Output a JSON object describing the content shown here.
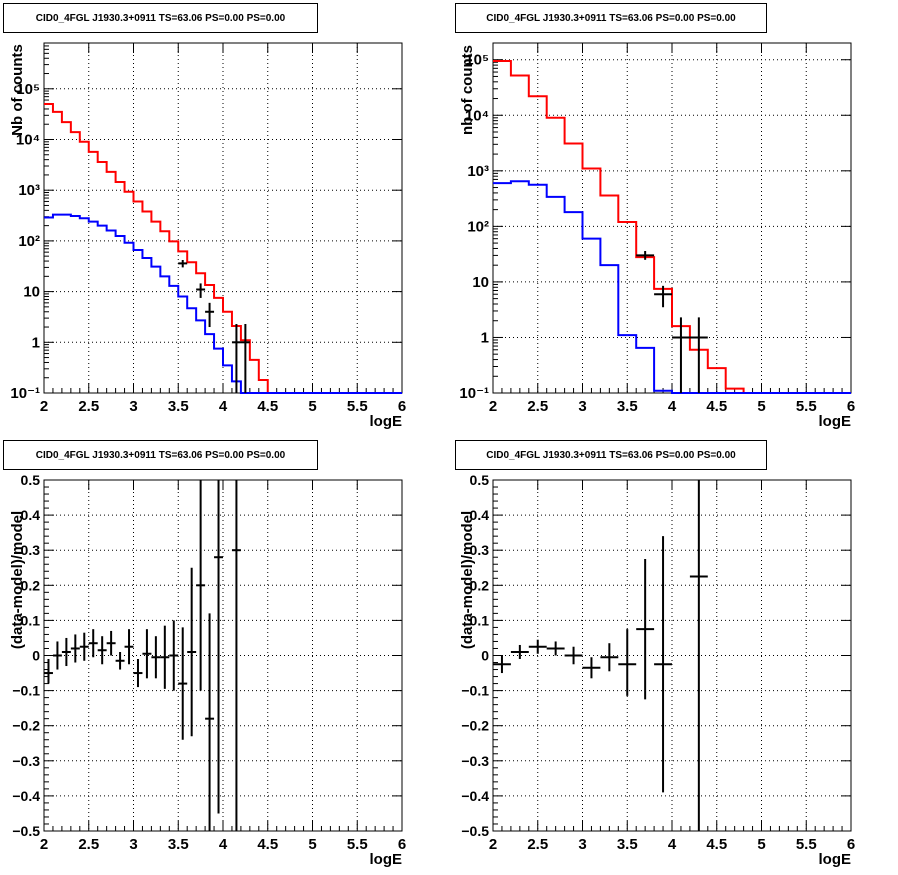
{
  "panels": [
    {
      "title": "CID0_4FGL J1930.3+0911 TS=63.06 PS=0.00 PS=0.00"
    },
    {
      "title": "CID0_4FGL J1930.3+0911 TS=63.06 PS=0.00 PS=0.00"
    },
    {
      "title": "CID0_4FGL J1930.3+0911 TS=63.06 PS=0.00 PS=0.00"
    },
    {
      "title": "CID0_4FGL J1930.3+0911 TS=63.06 PS=0.00 PS=0.00"
    }
  ],
  "colors": {
    "data": "#000000",
    "model": "#ff0000",
    "component": "#0000ff",
    "grid": "#000000"
  },
  "chart_data": [
    {
      "type": "line",
      "title": "CID0_4FGL J1930.3+0911 TS=63.06 PS=0.00 PS=0.00",
      "xlabel": "logE",
      "ylabel": "Nb of counts",
      "xlim": [
        2,
        6
      ],
      "ylim": [
        0.1,
        800000
      ],
      "yscale": "log",
      "grid": true,
      "xticks": [
        "2",
        "2.5",
        "3",
        "3.5",
        "4",
        "4.5",
        "5",
        "5.5",
        "6"
      ],
      "yticks": [
        {
          "v": 0.1,
          "l": "10⁻¹"
        },
        {
          "v": 1,
          "l": "1"
        },
        {
          "v": 10,
          "l": "10"
        },
        {
          "v": 100,
          "l": "10²"
        },
        {
          "v": 1000,
          "l": "10³"
        },
        {
          "v": 10000,
          "l": "10⁴"
        },
        {
          "v": 100000,
          "l": "10⁵"
        }
      ],
      "bin_edges": [
        2,
        2.1,
        2.2,
        2.3,
        2.4,
        2.5,
        2.6,
        2.7,
        2.8,
        2.9,
        3,
        3.1,
        3.2,
        3.3,
        3.4,
        3.5,
        3.6,
        3.7,
        3.8,
        3.9,
        4,
        4.1,
        4.2,
        4.3,
        4.4,
        4.5,
        4.6,
        4.7,
        4.8,
        4.9,
        5,
        5.1,
        5.2,
        5.3,
        5.4,
        5.5,
        5.6,
        5.7,
        5.8,
        5.9,
        6
      ],
      "series": [
        {
          "values": [
            50000,
            35000,
            22000,
            14000,
            9000,
            5700,
            3600,
            2300,
            1450,
            930,
            600,
            380,
            240,
            155,
            98,
            62,
            38,
            23,
            13.5,
            7.5,
            4,
            2.1,
            1.1,
            0.45,
            0.18,
            0.09,
            0,
            0,
            0,
            0,
            0,
            0,
            0,
            0,
            0,
            0,
            0,
            0,
            0,
            0
          ]
        },
        {
          "values": [
            290,
            330,
            330,
            310,
            280,
            240,
            200,
            160,
            125,
            92,
            66,
            46,
            31,
            20,
            13,
            8,
            4.7,
            2.7,
            1.45,
            0.75,
            0.35,
            0.17,
            0.08,
            0,
            0,
            0,
            0,
            0,
            0,
            0,
            0,
            0,
            0,
            0,
            0,
            0,
            0,
            0,
            0,
            0
          ]
        }
      ],
      "points": [
        {
          "x": 3.55,
          "y": 36,
          "lo": 30,
          "hi": 42
        },
        {
          "x": 3.75,
          "y": 11,
          "lo": 7.5,
          "hi": 14.5
        },
        {
          "x": 3.85,
          "y": 4,
          "lo": 2,
          "hi": 6
        },
        {
          "x": 4.15,
          "y": 1,
          "lo": 0.02,
          "hi": 2.3
        },
        {
          "x": 4.25,
          "y": 1,
          "lo": 0.02,
          "hi": 2.3
        }
      ]
    },
    {
      "type": "line",
      "title": "CID0_4FGL J1930.3+0911 TS=63.06 PS=0.00 PS=0.00",
      "xlabel": "logE",
      "ylabel": "nb of counts",
      "xlim": [
        2,
        6
      ],
      "ylim": [
        0.1,
        200000
      ],
      "yscale": "log",
      "grid": true,
      "xticks": [
        "2",
        "2.5",
        "3",
        "3.5",
        "4",
        "4.5",
        "5",
        "5.5",
        "6"
      ],
      "yticks": [
        {
          "v": 0.1,
          "l": "10⁻¹"
        },
        {
          "v": 1,
          "l": "1"
        },
        {
          "v": 10,
          "l": "10"
        },
        {
          "v": 100,
          "l": "10²"
        },
        {
          "v": 1000,
          "l": "10³"
        },
        {
          "v": 10000,
          "l": "10⁴"
        },
        {
          "v": 100000,
          "l": "10⁵"
        }
      ],
      "bin_edges": [
        2,
        2.2,
        2.4,
        2.6,
        2.8,
        3,
        3.2,
        3.4,
        3.6,
        3.8,
        4,
        4.2,
        4.4,
        4.6,
        4.8,
        5,
        5.2,
        5.4,
        5.6,
        5.8,
        6
      ],
      "series": [
        {
          "values": [
            95000,
            52000,
            22000,
            9000,
            3100,
            1100,
            360,
            120,
            28,
            7.5,
            1.6,
            0.6,
            0.28,
            0.12,
            0,
            0,
            0,
            0,
            0,
            0
          ]
        },
        {
          "values": [
            600,
            650,
            560,
            340,
            180,
            60,
            20,
            1.1,
            0.65,
            0.11,
            0,
            0,
            0,
            0,
            0,
            0,
            0,
            0,
            0,
            0
          ]
        }
      ],
      "points": [
        {
          "x": 3.7,
          "y": 30,
          "lo": 25,
          "hi": 36
        },
        {
          "x": 3.9,
          "y": 6,
          "lo": 3.5,
          "hi": 8.5
        },
        {
          "x": 4.1,
          "y": 1,
          "lo": 0.02,
          "hi": 2.3
        },
        {
          "x": 4.3,
          "y": 1,
          "lo": 0.02,
          "hi": 2.3
        }
      ]
    },
    {
      "type": "scatter",
      "title": "CID0_4FGL J1930.3+0911 TS=63.06 PS=0.00 PS=0.00",
      "xlabel": "logE",
      "ylabel": "(data-model)/model",
      "xlim": [
        2,
        6
      ],
      "ylim": [
        -0.5,
        0.5
      ],
      "grid": true,
      "xticks": [
        "2",
        "2.5",
        "3",
        "3.5",
        "4",
        "4.5",
        "5",
        "5.5",
        "6"
      ],
      "yticks": [
        "−0.5",
        "−0.4",
        "−0.3",
        "−0.2",
        "−0.1",
        "0",
        "0.1",
        "0.2",
        "0.3",
        "0.4",
        "0.5"
      ],
      "points": [
        {
          "x": 2.05,
          "y": -0.05,
          "lo": -0.08,
          "hi": -0.01
        },
        {
          "x": 2.15,
          "y": 0.0,
          "lo": -0.04,
          "hi": 0.04
        },
        {
          "x": 2.25,
          "y": 0.01,
          "lo": -0.03,
          "hi": 0.05
        },
        {
          "x": 2.35,
          "y": 0.02,
          "lo": -0.02,
          "hi": 0.06
        },
        {
          "x": 2.45,
          "y": 0.025,
          "lo": -0.015,
          "hi": 0.065
        },
        {
          "x": 2.55,
          "y": 0.035,
          "lo": -0.005,
          "hi": 0.075
        },
        {
          "x": 2.65,
          "y": 0.015,
          "lo": -0.025,
          "hi": 0.055
        },
        {
          "x": 2.75,
          "y": 0.035,
          "lo": 0.0,
          "hi": 0.07
        },
        {
          "x": 2.85,
          "y": -0.015,
          "lo": -0.04,
          "hi": 0.01
        },
        {
          "x": 2.95,
          "y": 0.025,
          "lo": -0.025,
          "hi": 0.075
        },
        {
          "x": 3.05,
          "y": -0.05,
          "lo": -0.09,
          "hi": -0.01
        },
        {
          "x": 3.15,
          "y": 0.005,
          "lo": -0.065,
          "hi": 0.075
        },
        {
          "x": 3.25,
          "y": -0.005,
          "lo": -0.065,
          "hi": 0.055
        },
        {
          "x": 3.35,
          "y": -0.005,
          "lo": -0.095,
          "hi": 0.085
        },
        {
          "x": 3.45,
          "y": 0.0,
          "lo": -0.1,
          "hi": 0.1
        },
        {
          "x": 3.55,
          "y": -0.08,
          "lo": -0.24,
          "hi": 0.08
        },
        {
          "x": 3.65,
          "y": 0.01,
          "lo": -0.23,
          "hi": 0.25
        },
        {
          "x": 3.75,
          "y": 0.2,
          "lo": -0.1,
          "hi": 0.5
        },
        {
          "x": 3.85,
          "y": -0.18,
          "lo": -0.5,
          "hi": 0.12
        },
        {
          "x": 3.95,
          "y": 0.28,
          "lo": -0.45,
          "hi": 0.5
        },
        {
          "x": 4.15,
          "y": 0.3,
          "lo": -0.5,
          "hi": 0.5
        }
      ]
    },
    {
      "type": "scatter",
      "title": "CID0_4FGL J1930.3+0911 TS=63.06 PS=0.00 PS=0.00",
      "xlabel": "logE",
      "ylabel": "(data-model)/model",
      "xlim": [
        2,
        6
      ],
      "ylim": [
        -0.5,
        0.5
      ],
      "grid": true,
      "xticks": [
        "2",
        "2.5",
        "3",
        "3.5",
        "4",
        "4.5",
        "5",
        "5.5",
        "6"
      ],
      "yticks": [
        "−0.5",
        "−0.4",
        "−0.3",
        "−0.2",
        "−0.1",
        "0",
        "0.1",
        "0.2",
        "0.3",
        "0.4",
        "0.5"
      ],
      "points": [
        {
          "x": 2.1,
          "y": -0.025,
          "lo": -0.05,
          "hi": 0.0
        },
        {
          "x": 2.3,
          "y": 0.01,
          "lo": -0.01,
          "hi": 0.03
        },
        {
          "x": 2.5,
          "y": 0.025,
          "lo": 0.005,
          "hi": 0.045
        },
        {
          "x": 2.7,
          "y": 0.02,
          "lo": 0.0,
          "hi": 0.04
        },
        {
          "x": 2.9,
          "y": 0.0,
          "lo": -0.025,
          "hi": 0.025
        },
        {
          "x": 3.1,
          "y": -0.035,
          "lo": -0.065,
          "hi": -0.005
        },
        {
          "x": 3.3,
          "y": -0.005,
          "lo": -0.045,
          "hi": 0.035
        },
        {
          "x": 3.5,
          "y": -0.025,
          "lo": -0.115,
          "hi": 0.075
        },
        {
          "x": 3.7,
          "y": 0.075,
          "lo": -0.125,
          "hi": 0.275
        },
        {
          "x": 3.9,
          "y": -0.025,
          "lo": -0.39,
          "hi": 0.34
        },
        {
          "x": 4.3,
          "y": 0.225,
          "lo": -0.5,
          "hi": 0.5
        }
      ]
    }
  ]
}
